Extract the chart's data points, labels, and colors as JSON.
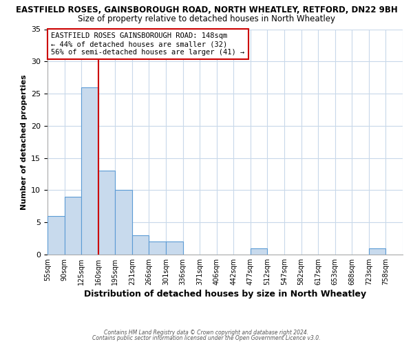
{
  "title_line1": "EASTFIELD ROSES, GAINSBOROUGH ROAD, NORTH WHEATLEY, RETFORD, DN22 9BH",
  "title_line2": "Size of property relative to detached houses in North Wheatley",
  "xlabel": "Distribution of detached houses by size in North Wheatley",
  "ylabel": "Number of detached properties",
  "bin_labels": [
    "55sqm",
    "90sqm",
    "125sqm",
    "160sqm",
    "195sqm",
    "231sqm",
    "266sqm",
    "301sqm",
    "336sqm",
    "371sqm",
    "406sqm",
    "442sqm",
    "477sqm",
    "512sqm",
    "547sqm",
    "582sqm",
    "617sqm",
    "653sqm",
    "688sqm",
    "723sqm",
    "758sqm"
  ],
  "bar_values": [
    6,
    9,
    26,
    13,
    10,
    3,
    2,
    2,
    0,
    0,
    0,
    0,
    1,
    0,
    0,
    0,
    0,
    0,
    0,
    1,
    0
  ],
  "bar_color": "#c8daed",
  "bar_edge_color": "#5b9bd5",
  "property_line_index": 3,
  "ylim": [
    0,
    35
  ],
  "yticks": [
    0,
    5,
    10,
    15,
    20,
    25,
    30,
    35
  ],
  "annotation_title": "EASTFIELD ROSES GAINSBOROUGH ROAD: 148sqm",
  "annotation_line2": "← 44% of detached houses are smaller (32)",
  "annotation_line3": "56% of semi-detached houses are larger (41) →",
  "annotation_box_color": "#cc0000",
  "footnote1": "Contains HM Land Registry data © Crown copyright and database right 2024.",
  "footnote2": "Contains public sector information licensed under the Open Government Licence v3.0.",
  "background_color": "#ffffff",
  "grid_color": "#c8d8ea",
  "title1_fontsize": 8.5,
  "title2_fontsize": 8.5,
  "xlabel_fontsize": 9,
  "ylabel_fontsize": 8,
  "tick_fontsize": 7,
  "annot_fontsize": 7.5
}
